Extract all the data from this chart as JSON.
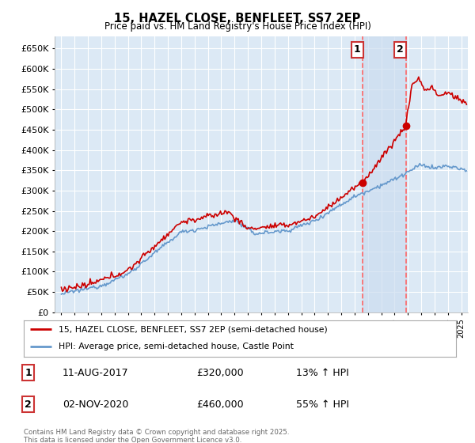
{
  "title": "15, HAZEL CLOSE, BENFLEET, SS7 2EP",
  "subtitle": "Price paid vs. HM Land Registry's House Price Index (HPI)",
  "ylim": [
    0,
    680000
  ],
  "yticks": [
    0,
    50000,
    100000,
    150000,
    200000,
    250000,
    300000,
    350000,
    400000,
    450000,
    500000,
    550000,
    600000,
    650000
  ],
  "xlim_start": 1994.5,
  "xlim_end": 2025.5,
  "bg_color": "#ffffff",
  "plot_bg_color": "#dce9f5",
  "grid_color": "#ffffff",
  "ann1_x": 2017.61,
  "ann1_price": 320000,
  "ann2_x": 2020.84,
  "ann2_price": 460000,
  "shade_color": "#ccddf0",
  "legend_line1": "15, HAZEL CLOSE, BENFLEET, SS7 2EP (semi-detached house)",
  "legend_line2": "HPI: Average price, semi-detached house, Castle Point",
  "footer": "Contains HM Land Registry data © Crown copyright and database right 2025.\nThis data is licensed under the Open Government Licence v3.0.",
  "line1_color": "#cc0000",
  "line2_color": "#6699cc",
  "vline_color": "#ff6666",
  "note1_date": "11-AUG-2017",
  "note1_price": "£320,000",
  "note1_hpi": "13% ↑ HPI",
  "note2_date": "02-NOV-2020",
  "note2_price": "£460,000",
  "note2_hpi": "55% ↑ HPI"
}
